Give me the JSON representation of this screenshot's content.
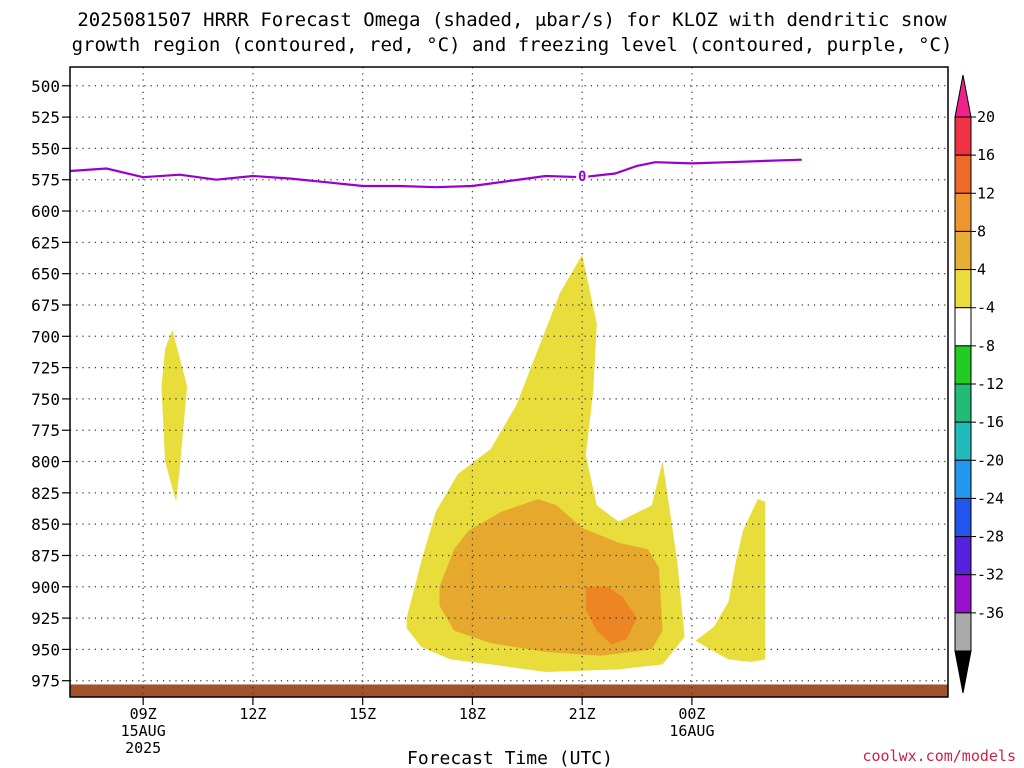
{
  "chart_data": {
    "type": "area",
    "title_lines": [
      "2025081507 HRRR Forecast Omega (shaded, μbar/s) for KLOZ with dendritic snow",
      "growth region (contoured, red, °C) and freezing level (contoured, purple, °C)"
    ],
    "xlabel": "Forecast Time (UTC)",
    "credit": "coolwx.com/models",
    "xlim": [
      7,
      31
    ],
    "ylim": [
      988,
      485
    ],
    "x_ticks": [
      {
        "x": 9,
        "lines": [
          "09Z",
          "15AUG",
          "2025"
        ]
      },
      {
        "x": 12,
        "lines": [
          "12Z"
        ]
      },
      {
        "x": 15,
        "lines": [
          "15Z"
        ]
      },
      {
        "x": 18,
        "lines": [
          "18Z"
        ]
      },
      {
        "x": 21,
        "lines": [
          "21Z"
        ]
      },
      {
        "x": 24,
        "lines": [
          "00Z",
          "16AUG"
        ]
      }
    ],
    "y_ticks": [
      "500",
      "525",
      "550",
      "575",
      "600",
      "625",
      "650",
      "675",
      "700",
      "725",
      "750",
      "775",
      "800",
      "825",
      "850",
      "875",
      "900",
      "925",
      "950",
      "975"
    ],
    "grid": true,
    "freezing_level": {
      "label": "0",
      "label_at": [
        21.0,
        572
      ],
      "color": "#9900cc",
      "points": [
        [
          7,
          568
        ],
        [
          8,
          566
        ],
        [
          9,
          573
        ],
        [
          10,
          571
        ],
        [
          11,
          575
        ],
        [
          12,
          572
        ],
        [
          13,
          574
        ],
        [
          14,
          577
        ],
        [
          15,
          580
        ],
        [
          16,
          580
        ],
        [
          17,
          581
        ],
        [
          18,
          580
        ],
        [
          19,
          576
        ],
        [
          20,
          572
        ],
        [
          21,
          573
        ],
        [
          21.9,
          570
        ],
        [
          22.5,
          564
        ],
        [
          23,
          561
        ],
        [
          24,
          562
        ],
        [
          25,
          561
        ],
        [
          26,
          560
        ],
        [
          27,
          559
        ]
      ]
    },
    "ground": {
      "color": "#a0522d",
      "top": 978,
      "bottom": 988
    },
    "omega_regions": [
      {
        "level": "4-8",
        "color": "#e8dd3a",
        "points": [
          [
            9.8,
            695
          ],
          [
            10.2,
            740
          ],
          [
            10.0,
            805
          ],
          [
            9.9,
            832
          ],
          [
            9.6,
            800
          ],
          [
            9.5,
            740
          ],
          [
            9.6,
            710
          ]
        ]
      },
      {
        "level": "4-8",
        "color": "#e8dd3a",
        "points": [
          [
            16.2,
            925
          ],
          [
            16.6,
            880
          ],
          [
            17,
            840
          ],
          [
            17.6,
            810
          ],
          [
            18.5,
            790
          ],
          [
            19.2,
            755
          ],
          [
            19.8,
            710
          ],
          [
            20.4,
            665
          ],
          [
            21.0,
            635
          ],
          [
            21.4,
            690
          ],
          [
            21.3,
            745
          ],
          [
            21.1,
            795
          ],
          [
            21.4,
            835
          ],
          [
            22.0,
            848
          ],
          [
            22.9,
            835
          ],
          [
            23.2,
            800
          ],
          [
            23.6,
            880
          ],
          [
            23.8,
            940
          ],
          [
            23.2,
            962
          ],
          [
            22.0,
            966
          ],
          [
            20,
            968
          ],
          [
            18.5,
            962
          ],
          [
            17.4,
            958
          ],
          [
            16.6,
            948
          ],
          [
            16.2,
            933
          ]
        ]
      },
      {
        "level": "4-8",
        "color": "#e8dd3a",
        "points": [
          [
            24.1,
            943
          ],
          [
            24.6,
            932
          ],
          [
            25.0,
            912
          ],
          [
            25.2,
            880
          ],
          [
            25.4,
            855
          ],
          [
            25.8,
            830
          ],
          [
            26,
            832
          ],
          [
            26,
            958
          ],
          [
            25.6,
            960
          ],
          [
            25.0,
            958
          ],
          [
            24.5,
            950
          ]
        ]
      },
      {
        "level": "8-12",
        "color": "#e6a92d",
        "points": [
          [
            17.1,
            900
          ],
          [
            17.5,
            870
          ],
          [
            17.9,
            855
          ],
          [
            18.8,
            840
          ],
          [
            19.8,
            830
          ],
          [
            20.3,
            835
          ],
          [
            21.0,
            853
          ],
          [
            22.0,
            865
          ],
          [
            22.8,
            870
          ],
          [
            23.1,
            885
          ],
          [
            23.2,
            935
          ],
          [
            22.9,
            950
          ],
          [
            21.5,
            955
          ],
          [
            20.0,
            952
          ],
          [
            18.5,
            945
          ],
          [
            17.5,
            935
          ],
          [
            17.1,
            915
          ]
        ]
      },
      {
        "level": "12-16",
        "color": "#ed8525",
        "points": [
          [
            21.1,
            900
          ],
          [
            21.7,
            900
          ],
          [
            22.1,
            908
          ],
          [
            22.5,
            925
          ],
          [
            22.2,
            942
          ],
          [
            21.8,
            946
          ],
          [
            21.4,
            935
          ],
          [
            21.1,
            918
          ]
        ]
      }
    ],
    "colorbar": {
      "labels": [
        "20",
        "16",
        "12",
        "8",
        "4",
        "-4",
        "-8",
        "-12",
        "-16",
        "-20",
        "-24",
        "-28",
        "-32",
        "-36"
      ],
      "colors": [
        "#ee3344",
        "#ee6a2a",
        "#ee9530",
        "#e6ae35",
        "#e8dd3a",
        "#ffffff",
        "#22cc22",
        "#22bb77",
        "#22bbbb",
        "#2299ee",
        "#2255ee",
        "#5522dd",
        "#9911cc",
        "#aaaaaa"
      ],
      "top_arrow_color": "#ee2288",
      "bottom_arrow_color": "#000000"
    }
  }
}
